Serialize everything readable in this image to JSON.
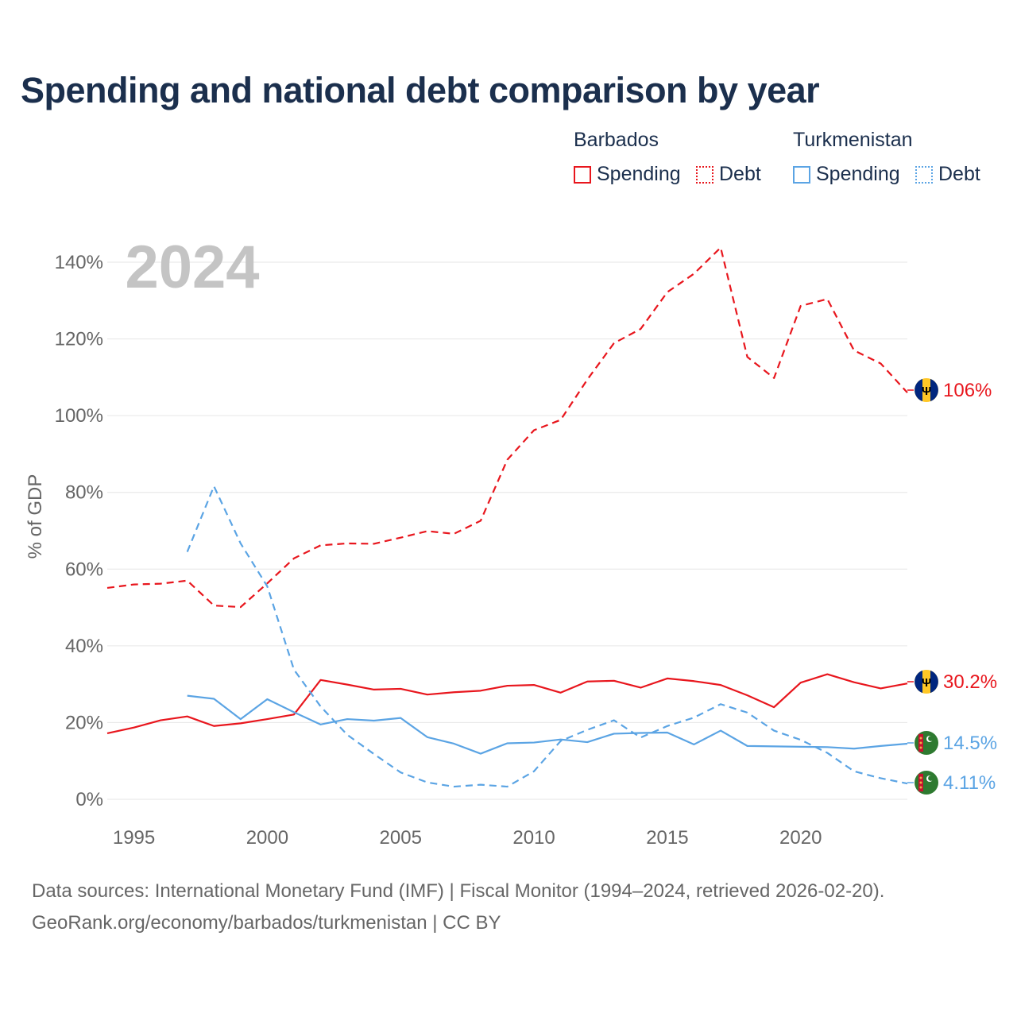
{
  "title": "Spending and national debt comparison by year",
  "legend": {
    "barbados": {
      "name": "Barbados",
      "spending": "Spending",
      "debt": "Debt"
    },
    "turkmenistan": {
      "name": "Turkmenistan",
      "spending": "Spending",
      "debt": "Debt"
    }
  },
  "year_watermark": "2024",
  "colors": {
    "barbados": "#e8161d",
    "turkmenistan": "#5ba4e4",
    "title": "#1b2f4d"
  },
  "end_labels": {
    "barbados_debt": "106%",
    "barbados_spending": "30.2%",
    "turkmenistan_spending": "14.5%",
    "turkmenistan_debt": "4.11%"
  },
  "flags": {
    "barbados": "barbados-flag-icon",
    "turkmenistan": "turkmenistan-flag-icon"
  },
  "footer": {
    "line1": "Data sources: International Monetary Fund (IMF) | Fiscal Monitor (1994–2024, retrieved 2026-02-20).",
    "line2": "GeoRank.org/economy/barbados/turkmenistan | CC BY"
  },
  "chart_data": {
    "type": "line",
    "title": "Spending and national debt comparison by year",
    "xlabel": "",
    "ylabel": "% of GDP",
    "xlim": [
      1994,
      2024
    ],
    "ylim": [
      0,
      140
    ],
    "x_ticks": [
      1995,
      2000,
      2005,
      2010,
      2015,
      2020
    ],
    "y_ticks": [
      0,
      20,
      40,
      60,
      80,
      100,
      120,
      140
    ],
    "y_tick_labels": [
      "0%",
      "20%",
      "40%",
      "60%",
      "80%",
      "100%",
      "120%",
      "140%"
    ],
    "grid": true,
    "legend_position": "top-right",
    "series": [
      {
        "name": "Barbados Debt",
        "country": "barbados",
        "style": "dashed",
        "x": [
          1994,
          1995,
          1996,
          1997,
          1998,
          1999,
          2000,
          2001,
          2002,
          2003,
          2004,
          2005,
          2006,
          2007,
          2008,
          2009,
          2010,
          2011,
          2012,
          2013,
          2014,
          2015,
          2016,
          2017,
          2018,
          2019,
          2020,
          2021,
          2022,
          2023,
          2024
        ],
        "values": [
          55.1,
          56.0,
          56.2,
          57.0,
          50.5,
          50.1,
          56.3,
          62.8,
          66.2,
          66.7,
          66.6,
          68.2,
          69.9,
          69.2,
          72.6,
          88.5,
          96.2,
          98.9,
          109.4,
          118.9,
          122.6,
          132.2,
          137.0,
          143.8,
          115.3,
          109.8,
          128.6,
          130.4,
          117.0,
          113.6,
          106.0
        ]
      },
      {
        "name": "Barbados Spending",
        "country": "barbados",
        "style": "solid",
        "x": [
          1994,
          1995,
          1996,
          1997,
          1998,
          1999,
          2000,
          2001,
          2002,
          2003,
          2004,
          2005,
          2006,
          2007,
          2008,
          2009,
          2010,
          2011,
          2012,
          2013,
          2014,
          2015,
          2016,
          2017,
          2018,
          2019,
          2020,
          2021,
          2022,
          2023,
          2024
        ],
        "values": [
          17.2,
          18.7,
          20.6,
          21.6,
          19.1,
          19.8,
          20.9,
          22.1,
          31.1,
          29.9,
          28.6,
          28.8,
          27.3,
          27.9,
          28.3,
          29.6,
          29.8,
          27.8,
          30.7,
          30.9,
          29.1,
          31.5,
          30.8,
          29.8,
          27.1,
          24.0,
          30.4,
          32.6,
          30.5,
          28.9,
          30.2
        ]
      },
      {
        "name": "Turkmenistan Spending",
        "country": "turkmenistan",
        "style": "solid",
        "x": [
          1997,
          1998,
          1999,
          2000,
          2001,
          2002,
          2003,
          2004,
          2005,
          2006,
          2007,
          2008,
          2009,
          2010,
          2011,
          2012,
          2013,
          2014,
          2015,
          2016,
          2017,
          2018,
          2019,
          2020,
          2021,
          2022,
          2023,
          2024
        ],
        "values": [
          27.0,
          26.2,
          20.9,
          26.1,
          22.7,
          19.5,
          20.9,
          20.5,
          21.2,
          16.2,
          14.5,
          11.9,
          14.6,
          14.8,
          15.6,
          14.9,
          17.1,
          17.3,
          17.4,
          14.3,
          17.9,
          13.9,
          13.8,
          13.7,
          13.6,
          13.2,
          13.9,
          14.5
        ]
      },
      {
        "name": "Turkmenistan Debt",
        "country": "turkmenistan",
        "style": "dashed",
        "x": [
          1997,
          1998,
          1999,
          2000,
          2001,
          2002,
          2003,
          2004,
          2005,
          2006,
          2007,
          2008,
          2009,
          2010,
          2011,
          2012,
          2013,
          2014,
          2015,
          2016,
          2017,
          2018,
          2019,
          2020,
          2021,
          2022,
          2023,
          2024
        ],
        "values": [
          64.5,
          81.6,
          66.7,
          55.5,
          33.8,
          24.2,
          16.8,
          11.8,
          7.0,
          4.4,
          3.3,
          3.8,
          3.3,
          7.3,
          15.2,
          18.1,
          20.6,
          16.1,
          19.1,
          21.3,
          24.8,
          22.6,
          17.9,
          15.5,
          12.1,
          7.3,
          5.5,
          4.11
        ]
      }
    ]
  }
}
